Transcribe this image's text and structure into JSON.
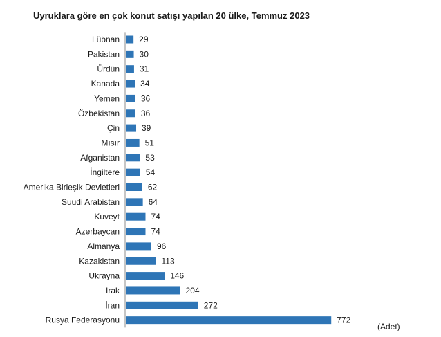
{
  "chart_data": {
    "type": "bar",
    "orientation": "horizontal",
    "title": "Uyruklara göre en çok konut satışı yapılan 20 ülke, Temmuz 2023",
    "unit": "(Adet)",
    "categories": [
      "Lübnan",
      "Pakistan",
      "Ürdün",
      "Kanada",
      "Yemen",
      "Özbekistan",
      "Çin",
      "Mısır",
      "Afganistan",
      "İngiltere",
      "Amerika Birleşik Devletleri",
      "Suudi Arabistan",
      "Kuveyt",
      "Azerbaycan",
      "Almanya",
      "Kazakistan",
      "Ukrayna",
      "Irak",
      "İran",
      "Rusya Federasyonu"
    ],
    "values": [
      29,
      30,
      31,
      34,
      36,
      36,
      39,
      51,
      53,
      54,
      62,
      64,
      74,
      74,
      96,
      113,
      146,
      204,
      272,
      772
    ],
    "xlim": [
      0,
      800
    ],
    "grid": false,
    "bar_color": "#2e75b6",
    "data_labels": true
  }
}
